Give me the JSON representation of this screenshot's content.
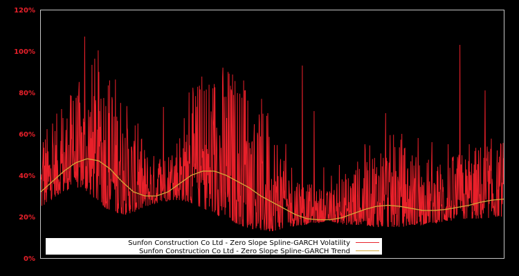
{
  "chart_data": {
    "type": "line",
    "title": "",
    "xlabel": "",
    "ylabel": "",
    "ylim": [
      0,
      120
    ],
    "yticks": [
      "0%",
      "20%",
      "40%",
      "60%",
      "80%",
      "100%",
      "120%"
    ],
    "ytick_values": [
      0,
      20,
      40,
      60,
      80,
      100,
      120
    ],
    "grid": false,
    "legend_position": "lower-left (inside plot)",
    "background": "#000000",
    "frame_color": "#c8c8c8",
    "series": [
      {
        "name": "Sunfon Construction Co Ltd - Zero Slope Spline-GARCH Volatility",
        "color": "#e8202a",
        "style": "dense line (daily volatility)",
        "x_frac": [
          0.0,
          0.02,
          0.04,
          0.06,
          0.08,
          0.09,
          0.095,
          0.1,
          0.12,
          0.14,
          0.16,
          0.18,
          0.2,
          0.22,
          0.24,
          0.26,
          0.28,
          0.3,
          0.32,
          0.34,
          0.36,
          0.38,
          0.4,
          0.42,
          0.44,
          0.46,
          0.48,
          0.5,
          0.52,
          0.54,
          0.56,
          0.57,
          0.58,
          0.6,
          0.62,
          0.64,
          0.66,
          0.68,
          0.7,
          0.72,
          0.74,
          0.76,
          0.78,
          0.8,
          0.82,
          0.84,
          0.86,
          0.88,
          0.9,
          0.905,
          0.92,
          0.94,
          0.96,
          0.98,
          1.0
        ],
        "baseline": [
          24,
          28,
          31,
          33,
          34,
          34,
          33,
          32,
          28,
          24,
          22,
          21,
          22,
          24,
          26,
          27,
          28,
          28,
          27,
          25,
          23,
          21,
          19,
          17,
          15,
          14,
          13,
          13,
          14,
          15,
          16,
          16,
          17,
          17,
          18,
          17,
          16,
          16,
          16,
          15,
          15,
          15,
          15,
          16,
          16,
          17,
          17,
          18,
          18,
          18,
          19,
          19,
          19,
          20,
          20
        ],
        "peaks": [
          {
            "x_frac": 0.005,
            "y": 56
          },
          {
            "x_frac": 0.025,
            "y": 65
          },
          {
            "x_frac": 0.045,
            "y": 72
          },
          {
            "x_frac": 0.07,
            "y": 76
          },
          {
            "x_frac": 0.095,
            "y": 107
          },
          {
            "x_frac": 0.13,
            "y": 77
          },
          {
            "x_frac": 0.17,
            "y": 40
          },
          {
            "x_frac": 0.21,
            "y": 65
          },
          {
            "x_frac": 0.265,
            "y": 73
          },
          {
            "x_frac": 0.32,
            "y": 80
          },
          {
            "x_frac": 0.38,
            "y": 63
          },
          {
            "x_frac": 0.44,
            "y": 81
          },
          {
            "x_frac": 0.49,
            "y": 70
          },
          {
            "x_frac": 0.525,
            "y": 47
          },
          {
            "x_frac": 0.565,
            "y": 93
          },
          {
            "x_frac": 0.59,
            "y": 71
          },
          {
            "x_frac": 0.645,
            "y": 45
          },
          {
            "x_frac": 0.7,
            "y": 55
          },
          {
            "x_frac": 0.745,
            "y": 70
          },
          {
            "x_frac": 0.78,
            "y": 60
          },
          {
            "x_frac": 0.815,
            "y": 58
          },
          {
            "x_frac": 0.845,
            "y": 56
          },
          {
            "x_frac": 0.88,
            "y": 55
          },
          {
            "x_frac": 0.905,
            "y": 103
          },
          {
            "x_frac": 0.925,
            "y": 55
          },
          {
            "x_frac": 0.96,
            "y": 81
          },
          {
            "x_frac": 0.985,
            "y": 42
          }
        ]
      },
      {
        "name": "Sunfon Construction Co Ltd - Zero Slope Spline-GARCH Trend",
        "color": "#d4a838",
        "style": "smooth line",
        "x_frac": [
          0.0,
          0.025,
          0.05,
          0.075,
          0.1,
          0.125,
          0.15,
          0.175,
          0.2,
          0.225,
          0.25,
          0.275,
          0.3,
          0.325,
          0.35,
          0.375,
          0.4,
          0.425,
          0.45,
          0.475,
          0.5,
          0.525,
          0.55,
          0.575,
          0.6,
          0.625,
          0.65,
          0.675,
          0.7,
          0.725,
          0.75,
          0.775,
          0.8,
          0.825,
          0.85,
          0.875,
          0.9,
          0.925,
          0.95,
          0.975,
          1.0
        ],
        "values": [
          32,
          37,
          42,
          46,
          48,
          47,
          43,
          37,
          32,
          30,
          30,
          32,
          36,
          40,
          42,
          42,
          40,
          37,
          34,
          30,
          27,
          24,
          21,
          19,
          18.5,
          18.5,
          19.5,
          21.5,
          23.5,
          25,
          25.5,
          25,
          24,
          23,
          23,
          23.5,
          24.5,
          25.5,
          27,
          28,
          28.5
        ]
      }
    ]
  },
  "legend": {
    "items": [
      {
        "label": "Sunfon Construction Co Ltd - Zero Slope Spline-GARCH Volatility",
        "color": "#e8202a"
      },
      {
        "label": "Sunfon Construction Co Ltd - Zero Slope Spline-GARCH Trend",
        "color": "#d4a838"
      }
    ]
  }
}
